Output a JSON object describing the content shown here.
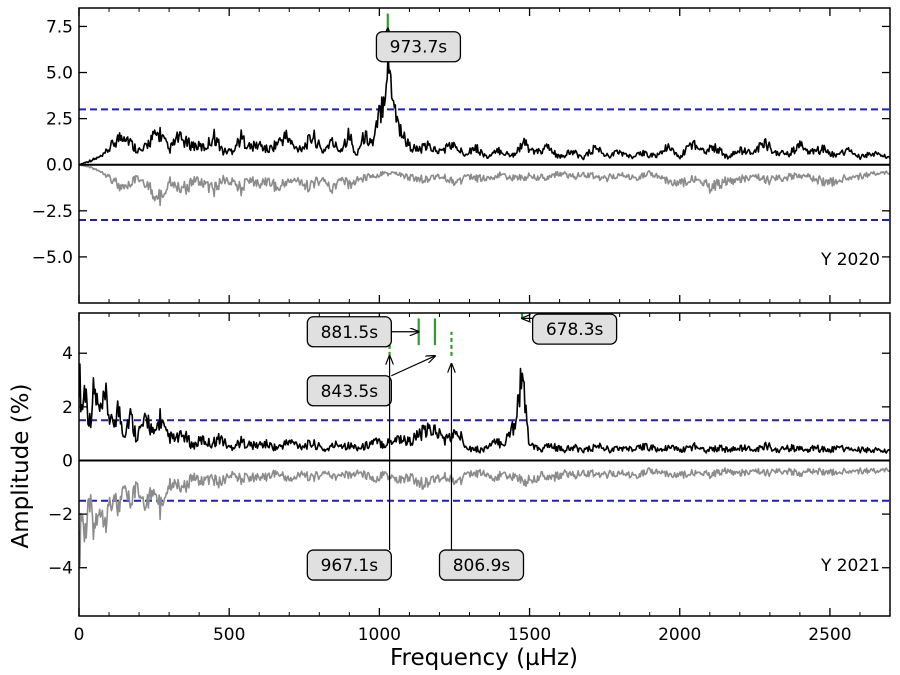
{
  "chart_data": [
    {
      "type": "line",
      "panel": "top",
      "label": "Y 2020",
      "xlim": [
        0,
        2700
      ],
      "ylim": [
        -7.5,
        8.5
      ],
      "yticks": [
        7.5,
        5.0,
        2.5,
        0.0,
        -2.5,
        -5.0
      ],
      "ytick_labels": [
        "7.5",
        "5.0",
        "2.5",
        "0.0",
        "−2.5",
        "−5.0"
      ],
      "threshold": 3.0,
      "colors": {
        "spectrum": "#000000",
        "window": "#8c8c8c",
        "threshold": "#1f1fbf",
        "marker": "#2ca02c"
      },
      "series": [
        {
          "role": "positive",
          "x": [
            0,
            40,
            80,
            120,
            150,
            180,
            210,
            240,
            270,
            300,
            330,
            360,
            390,
            420,
            450,
            480,
            510,
            540,
            570,
            600,
            630,
            660,
            690,
            720,
            750,
            780,
            810,
            840,
            870,
            900,
            920,
            950,
            980,
            1000,
            1015,
            1025,
            1035,
            1045,
            1060,
            1080,
            1100,
            1130,
            1160,
            1200,
            1240,
            1280,
            1320,
            1360,
            1400,
            1440,
            1480,
            1520,
            1560,
            1600,
            1640,
            1680,
            1720,
            1760,
            1800,
            1840,
            1880,
            1920,
            1960,
            2000,
            2040,
            2080,
            2120,
            2160,
            2200,
            2240,
            2280,
            2320,
            2360,
            2400,
            2440,
            2480,
            2520,
            2560,
            2600,
            2640,
            2680,
            2700
          ],
          "y": [
            0.0,
            0.3,
            0.6,
            1.6,
            2.2,
            1.3,
            0.9,
            1.8,
            2.2,
            1.0,
            1.9,
            1.5,
            1.3,
            1.2,
            2.0,
            0.9,
            1.0,
            1.9,
            1.2,
            1.4,
            1.0,
            1.5,
            2.0,
            1.1,
            1.3,
            2.0,
            0.9,
            1.6,
            1.0,
            2.2,
            0.6,
            2.0,
            1.5,
            3.5,
            5.0,
            6.8,
            6.5,
            5.2,
            3.0,
            2.0,
            1.3,
            1.0,
            1.3,
            0.9,
            1.4,
            0.8,
            1.2,
            0.5,
            1.0,
            0.6,
            1.5,
            0.8,
            1.2,
            0.5,
            0.9,
            0.5,
            1.2,
            0.6,
            0.9,
            0.5,
            0.8,
            0.6,
            1.2,
            0.5,
            1.5,
            1.0,
            1.2,
            0.5,
            1.0,
            0.8,
            1.5,
            0.9,
            0.7,
            1.3,
            0.9,
            1.1,
            0.6,
            1.0,
            0.5,
            0.8,
            0.6,
            0.4
          ]
        },
        {
          "role": "window",
          "x": [
            0,
            40,
            80,
            120,
            150,
            180,
            210,
            240,
            270,
            300,
            330,
            360,
            390,
            420,
            450,
            480,
            510,
            540,
            570,
            600,
            630,
            660,
            690,
            720,
            750,
            780,
            810,
            840,
            870,
            900,
            950,
            1000,
            1050,
            1100,
            1150,
            1200,
            1250,
            1300,
            1350,
            1400,
            1450,
            1500,
            1550,
            1600,
            1650,
            1700,
            1750,
            1800,
            1850,
            1900,
            1950,
            2000,
            2050,
            2100,
            2150,
            2200,
            2250,
            2300,
            2350,
            2400,
            2450,
            2500,
            2550,
            2600,
            2650,
            2700
          ],
          "y": [
            0.0,
            -0.2,
            -0.5,
            -1.2,
            -1.9,
            -1.1,
            -1.0,
            -1.8,
            -2.4,
            -1.1,
            -1.5,
            -1.6,
            -1.0,
            -1.4,
            -1.8,
            -1.0,
            -1.3,
            -1.7,
            -1.0,
            -1.4,
            -1.1,
            -1.7,
            -1.2,
            -1.0,
            -1.6,
            -1.3,
            -1.0,
            -1.7,
            -1.1,
            -1.4,
            -0.9,
            -0.7,
            -0.6,
            -0.9,
            -1.0,
            -0.8,
            -1.2,
            -0.9,
            -1.0,
            -0.7,
            -1.0,
            -0.8,
            -0.9,
            -0.6,
            -0.8,
            -0.7,
            -1.0,
            -0.7,
            -0.9,
            -0.6,
            -1.0,
            -1.3,
            -1.0,
            -1.6,
            -1.2,
            -1.0,
            -0.8,
            -1.1,
            -0.9,
            -0.7,
            -1.0,
            -1.3,
            -0.9,
            -0.8,
            -0.6,
            -0.5
          ]
        }
      ],
      "markers": [
        {
          "x": 1028,
          "style": "solid",
          "y0": 7.4,
          "y1": 8.2
        }
      ],
      "annotations": [
        {
          "text": "973.7s",
          "target": [
            1028,
            7.4
          ],
          "box": [
            1130,
            6.4
          ]
        }
      ]
    },
    {
      "type": "line",
      "panel": "bottom",
      "label": "Y 2021",
      "xlim": [
        0,
        2700
      ],
      "ylim": [
        -5.8,
        5.5
      ],
      "yticks": [
        4,
        2,
        0,
        -2,
        -4
      ],
      "ytick_labels": [
        "4",
        "2",
        "0",
        "−2",
        "−4"
      ],
      "xticks": [
        0,
        500,
        1000,
        1500,
        2000,
        2500
      ],
      "xtick_labels": [
        "0",
        "500",
        "1000",
        "1500",
        "2000",
        "2500"
      ],
      "threshold": 1.5,
      "colors": {
        "spectrum": "#000000",
        "window": "#8c8c8c",
        "threshold": "#1f1fbf",
        "marker": "#2ca02c"
      },
      "series": [
        {
          "role": "positive",
          "x": [
            0,
            10,
            20,
            35,
            50,
            70,
            90,
            110,
            130,
            150,
            170,
            190,
            210,
            230,
            250,
            270,
            290,
            320,
            350,
            380,
            410,
            440,
            470,
            500,
            540,
            580,
            620,
            660,
            700,
            740,
            780,
            820,
            860,
            900,
            940,
            980,
            1020,
            1060,
            1100,
            1140,
            1180,
            1220,
            1260,
            1300,
            1340,
            1380,
            1420,
            1450,
            1465,
            1475,
            1485,
            1500,
            1530,
            1570,
            1610,
            1650,
            1690,
            1730,
            1770,
            1810,
            1850,
            1890,
            1930,
            1970,
            2010,
            2050,
            2090,
            2130,
            2170,
            2210,
            2250,
            2290,
            2330,
            2370,
            2410,
            2450,
            2490,
            2530,
            2570,
            2610,
            2650,
            2700
          ],
          "y": [
            4.3,
            2.4,
            3.6,
            1.8,
            3.4,
            2.2,
            2.9,
            1.6,
            2.5,
            1.3,
            2.2,
            1.2,
            1.6,
            2.0,
            1.1,
            2.1,
            1.2,
            1.0,
            1.2,
            0.7,
            1.0,
            0.8,
            1.1,
            0.6,
            0.9,
            0.7,
            0.8,
            0.6,
            0.9,
            0.7,
            0.8,
            0.5,
            0.8,
            0.7,
            0.6,
            0.9,
            0.8,
            1.1,
            0.9,
            1.3,
            1.5,
            1.0,
            1.3,
            0.6,
            0.5,
            0.8,
            0.9,
            1.8,
            3.2,
            4.4,
            2.4,
            0.8,
            0.5,
            0.7,
            0.5,
            0.6,
            0.5,
            0.7,
            0.5,
            0.6,
            0.5,
            0.7,
            0.5,
            0.6,
            0.5,
            0.7,
            0.5,
            0.6,
            0.5,
            0.6,
            0.5,
            0.7,
            0.5,
            0.6,
            0.5,
            0.6,
            0.5,
            0.6,
            0.5,
            0.5,
            0.5,
            0.4
          ]
        },
        {
          "role": "window",
          "x": [
            0,
            10,
            20,
            35,
            50,
            70,
            90,
            110,
            130,
            150,
            170,
            190,
            210,
            230,
            250,
            270,
            290,
            320,
            350,
            380,
            410,
            440,
            470,
            500,
            540,
            580,
            620,
            660,
            700,
            740,
            780,
            820,
            860,
            900,
            940,
            980,
            1020,
            1060,
            1100,
            1140,
            1180,
            1220,
            1260,
            1300,
            1340,
            1380,
            1420,
            1460,
            1500,
            1540,
            1580,
            1620,
            1660,
            1700,
            1750,
            1800,
            1850,
            1900,
            1950,
            2000,
            2050,
            2100,
            2150,
            2200,
            2250,
            2300,
            2350,
            2400,
            2450,
            2500,
            2550,
            2600,
            2650,
            2700
          ],
          "y": [
            -4.7,
            -2.6,
            -3.9,
            -2.0,
            -3.2,
            -2.2,
            -2.7,
            -1.8,
            -2.3,
            -1.5,
            -2.0,
            -1.4,
            -1.7,
            -2.1,
            -1.2,
            -2.4,
            -1.3,
            -1.0,
            -1.3,
            -0.8,
            -1.0,
            -0.9,
            -1.1,
            -0.7,
            -0.9,
            -0.8,
            -0.8,
            -0.6,
            -0.9,
            -0.7,
            -0.8,
            -0.6,
            -0.8,
            -0.7,
            -0.6,
            -0.9,
            -0.7,
            -1.0,
            -0.8,
            -1.1,
            -0.9,
            -0.8,
            -1.0,
            -0.7,
            -0.6,
            -0.8,
            -0.7,
            -0.9,
            -1.0,
            -0.7,
            -0.8,
            -0.6,
            -0.7,
            -0.6,
            -0.7,
            -0.6,
            -0.7,
            -0.5,
            -0.6,
            -0.7,
            -0.6,
            -0.7,
            -0.5,
            -0.6,
            -0.5,
            -0.6,
            -0.5,
            -0.6,
            -0.5,
            -0.6,
            -0.5,
            -0.5,
            -0.5,
            -0.4
          ]
        }
      ],
      "markers": [
        {
          "x": 1034,
          "style": "dashed",
          "y0": 3.9,
          "y1": 4.8
        },
        {
          "x": 1131,
          "style": "solid",
          "y0": 4.3,
          "y1": 5.3
        },
        {
          "x": 1185,
          "style": "solid",
          "y0": 4.3,
          "y1": 5.3
        },
        {
          "x": 1240,
          "style": "dashed",
          "y0": 3.9,
          "y1": 4.8
        },
        {
          "x": 1475,
          "style": "solid",
          "y0": 5.3,
          "y1": 6.0
        }
      ],
      "annotations": [
        {
          "text": "881.5s",
          "target": [
            1131,
            4.8
          ],
          "box": [
            900,
            4.8
          ]
        },
        {
          "text": "843.5s",
          "target": [
            1185,
            3.9
          ],
          "box": [
            900,
            2.6
          ]
        },
        {
          "text": "678.3s",
          "target": [
            1475,
            5.3
          ],
          "box": [
            1650,
            4.9
          ]
        },
        {
          "text": "967.1s",
          "target": [
            1034,
            3.9
          ],
          "box": [
            900,
            -3.9
          ]
        },
        {
          "text": "806.9s",
          "target": [
            1240,
            3.6
          ],
          "box": [
            1340,
            -3.9
          ]
        }
      ]
    }
  ],
  "axes": {
    "xlabel": "Frequency (µHz)",
    "ylabel": "Amplitude (%)"
  }
}
